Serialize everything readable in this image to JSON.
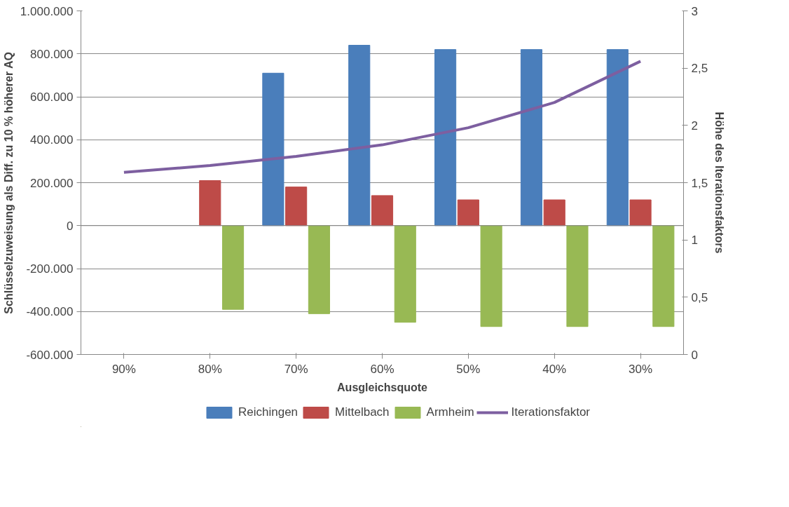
{
  "chart_data": {
    "type": "bar",
    "xlabel": "Ausgleichsquote",
    "ylabel": "Schlüsselzuweisung als Diff. zu 10 % höherer AQ",
    "y2label": "Höhe des Iterationsfaktors",
    "categories": [
      "90%",
      "80%",
      "70%",
      "60%",
      "50%",
      "40%",
      "30%"
    ],
    "series": [
      {
        "name": "Reichingen",
        "color": "#4a7ebb",
        "values": [
          null,
          null,
          710000,
          840000,
          820000,
          820000,
          820000
        ]
      },
      {
        "name": "Mittelbach",
        "color": "#be4b48",
        "values": [
          null,
          210000,
          180000,
          140000,
          120000,
          120000,
          120000
        ]
      },
      {
        "name": "Armheim",
        "color": "#98b954",
        "values": [
          null,
          -390000,
          -410000,
          -450000,
          -470000,
          -470000,
          -470000
        ]
      },
      {
        "name": "Iterationsfaktor",
        "type": "line",
        "axis": "y2",
        "color": "#7d5fa0",
        "values": [
          1.59,
          1.65,
          1.73,
          1.83,
          1.98,
          2.2,
          2.56
        ]
      }
    ],
    "ylim": [
      -600000,
      1000000
    ],
    "yticks": [
      {
        "value": -600000,
        "label": "-600.000"
      },
      {
        "value": -400000,
        "label": "-400.000"
      },
      {
        "value": -200000,
        "label": "-200.000"
      },
      {
        "value": 0,
        "label": "0"
      },
      {
        "value": 200000,
        "label": "200.000"
      },
      {
        "value": 400000,
        "label": "400.000"
      },
      {
        "value": 600000,
        "label": "600.000"
      },
      {
        "value": 800000,
        "label": "800.000"
      },
      {
        "value": 1000000,
        "label": "1.000.000"
      }
    ],
    "y2lim": [
      0,
      3
    ],
    "y2ticks": [
      0,
      {
        "value": 0.5,
        "label": "0,5"
      },
      1,
      {
        "value": 1.5,
        "label": "1,5"
      },
      2,
      {
        "value": 2.5,
        "label": "2,5"
      },
      3
    ],
    "grid": "y",
    "legend": "bottom",
    "marker": "none",
    "line_style": "solid"
  }
}
